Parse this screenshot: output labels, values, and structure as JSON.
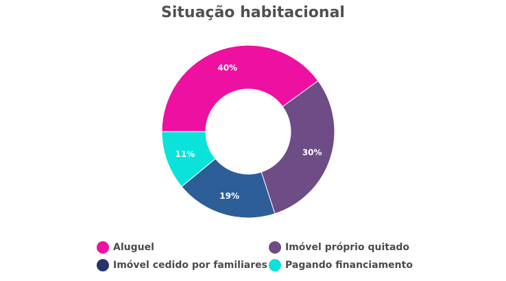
{
  "chart_data": {
    "type": "pie",
    "title": "Situação habitacional",
    "categories": [
      "Aluguel",
      "Imóvel próprio quitado",
      "Imóvel cedido por familiares",
      "Pagando financiamento"
    ],
    "values": [
      40,
      30,
      19,
      11
    ],
    "labels": [
      "40%",
      "30%",
      "19%",
      "11%"
    ],
    "colors": [
      "#EE10A0",
      "#6E4C86",
      "#2D5E98",
      "#0BE3DA"
    ],
    "donut": true,
    "legend": "bottom"
  },
  "legend": {
    "items": [
      {
        "label": "Aluguel",
        "color": "#EE10A0"
      },
      {
        "label": "Imóvel próprio quitado",
        "color": "#6E4C86"
      },
      {
        "label": "Imóvel cedido por familiares",
        "color": "#27346B"
      },
      {
        "label": "Pagando financiamento",
        "color": "#0BE3DA"
      }
    ]
  }
}
